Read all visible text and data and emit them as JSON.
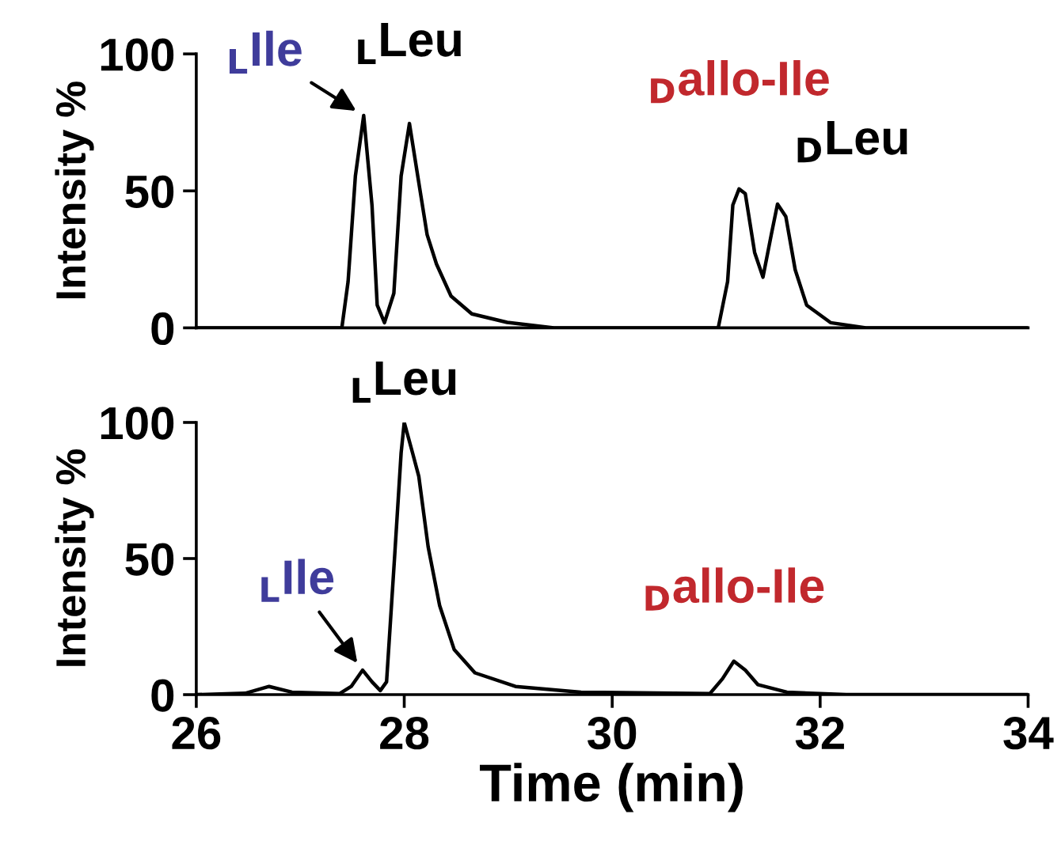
{
  "chart_data": [
    {
      "type": "line",
      "ylabel": "Intensity %",
      "xlim": [
        26,
        34
      ],
      "ylim": [
        0,
        100
      ],
      "yticks": [
        0,
        50,
        100
      ],
      "tick_labels": "y",
      "grid": false,
      "legend": false,
      "series": [
        {
          "color": "#000000",
          "x": [
            26.0,
            27.4,
            27.46,
            27.53,
            27.61,
            27.69,
            27.74,
            27.81,
            27.9,
            27.97,
            28.05,
            28.13,
            28.22,
            28.31,
            28.45,
            28.65,
            28.99,
            29.44,
            31.02,
            31.11,
            31.16,
            31.22,
            31.28,
            31.37,
            31.45,
            31.53,
            31.59,
            31.67,
            31.76,
            31.87,
            32.1,
            32.44,
            34.0
          ],
          "values": [
            0,
            0,
            16.9,
            55.4,
            77.5,
            44.7,
            8.3,
            1.9,
            12.6,
            55.4,
            74.6,
            55.4,
            34,
            23.3,
            11.6,
            5.1,
            2,
            0,
            0,
            16.9,
            44.8,
            50.7,
            49,
            27.5,
            18.5,
            34,
            45.2,
            40.6,
            21.2,
            8.3,
            1.9,
            0,
            0
          ]
        }
      ],
      "annotations": [
        {
          "text": "$_{L}$Ile",
          "x": 27.61,
          "y": 77.5
        },
        {
          "text": "$_{L}$Leu",
          "x": 28.05,
          "y": 74.6
        },
        {
          "text": "$_{D}$allo-Ile",
          "x": 31.22,
          "y": 50.7
        },
        {
          "text": "$_{D}$Leu",
          "x": 31.59,
          "y": 45.2
        }
      ]
    },
    {
      "type": "line",
      "xlabel": "Time (min)",
      "ylabel": "Intensity %",
      "xlim": [
        26,
        34
      ],
      "ylim": [
        0,
        100
      ],
      "xticks": [
        26,
        28,
        30,
        32,
        34
      ],
      "yticks": [
        0,
        50,
        100
      ],
      "grid": false,
      "legend": false,
      "series": [
        {
          "color": "#000000",
          "x": [
            26.0,
            26.47,
            26.7,
            26.92,
            27.38,
            27.49,
            27.6,
            27.69,
            27.77,
            27.83,
            27.91,
            27.97,
            28.0,
            28.08,
            28.14,
            28.23,
            28.34,
            28.48,
            28.68,
            29.07,
            29.7,
            30.94,
            31.06,
            31.17,
            31.28,
            31.4,
            31.68,
            32.25,
            34.0
          ],
          "values": [
            0,
            0.5,
            3,
            0.9,
            0.4,
            3,
            9,
            4.7,
            1.5,
            4.7,
            52.2,
            88.8,
            100,
            88.8,
            80.2,
            54.3,
            32.8,
            16.6,
            8,
            3,
            0.9,
            0.4,
            5.8,
            12.3,
            9,
            3.7,
            0.9,
            0,
            0
          ]
        }
      ],
      "annotations": [
        {
          "text": "$_{L}$Ile",
          "x": 27.6,
          "y": 9
        },
        {
          "text": "$_{L}$Leu",
          "x": 28.0,
          "y": 100
        },
        {
          "text": "$_{D}$allo-Ile",
          "x": 31.17,
          "y": 12.3
        }
      ]
    }
  ]
}
